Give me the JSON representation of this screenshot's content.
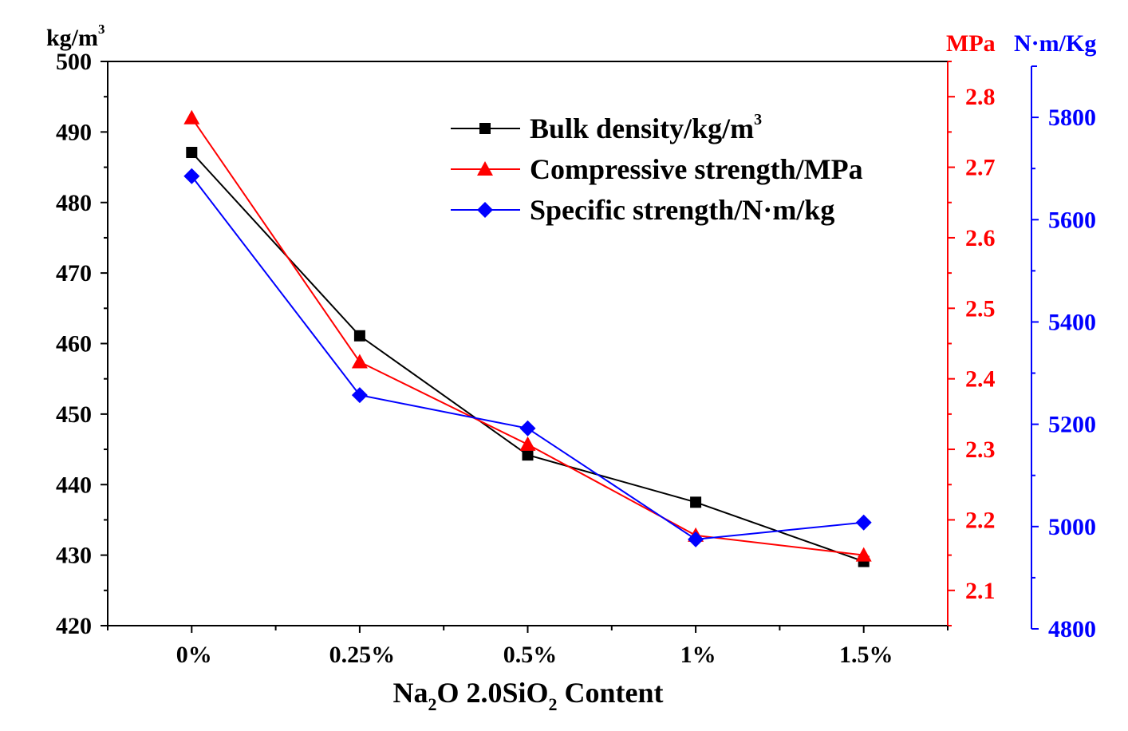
{
  "chart_data": {
    "type": "line",
    "title": "",
    "xlabel": {
      "base1": "Na",
      "sub1": "2",
      "base2": "O 2.0SiO",
      "sub2": "2",
      "base3": " Content"
    },
    "categories": [
      "0%",
      "0.25%",
      "0.5%",
      "1%",
      "1.5%"
    ],
    "axes": {
      "left": {
        "unit": "kg/m",
        "unit_sup": "3",
        "ylim": [
          420,
          500
        ],
        "ticks": [
          420,
          430,
          440,
          450,
          460,
          470,
          480,
          490,
          500
        ],
        "color": "#000000"
      },
      "right1": {
        "unit": "MPa",
        "ylim": [
          2.05,
          2.85
        ],
        "ticks": [
          2.1,
          2.2,
          2.3,
          2.4,
          2.5,
          2.6,
          2.7,
          2.8
        ],
        "color": "#ff0000"
      },
      "right2": {
        "unit": "N·m/Kg",
        "ylim": [
          4800,
          5900
        ],
        "ticks": [
          4800,
          5000,
          5200,
          5400,
          5600,
          5800
        ],
        "color": "#0000ff"
      }
    },
    "series": [
      {
        "name": "Bulk density/kg/m",
        "name_sup": "3",
        "axis": "left",
        "marker": "square",
        "color": "#000000",
        "values": [
          487.1,
          461.1,
          444.2,
          437.5,
          429.1
        ]
      },
      {
        "name": "Compressive strength/MPa",
        "axis": "right1",
        "marker": "triangle",
        "color": "#ff0000",
        "values": [
          2.77,
          2.424,
          2.307,
          2.178,
          2.15
        ]
      },
      {
        "name": "Specific strength/N·m/kg",
        "axis": "right2",
        "marker": "diamond",
        "color": "#0000ff",
        "values": [
          5685,
          5257,
          5192,
          4975,
          5008
        ]
      }
    ],
    "legend_position": "top-right",
    "grid": false
  }
}
